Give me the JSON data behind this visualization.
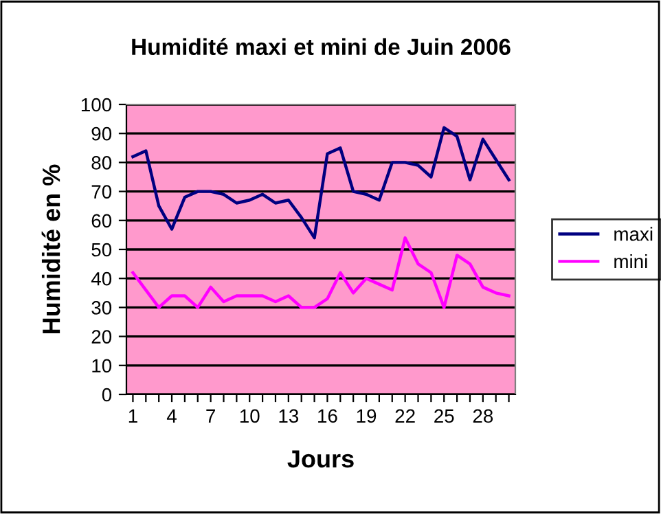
{
  "chart_data": {
    "type": "line",
    "title": "Humidité maxi et mini de Juin 2006",
    "xlabel": "Jours",
    "ylabel": "Humidité en %",
    "categories": [
      "1",
      null,
      null,
      "4",
      null,
      null,
      "7",
      null,
      null,
      "10",
      null,
      null,
      "13",
      null,
      null,
      "16",
      null,
      null,
      "19",
      null,
      null,
      "22",
      null,
      null,
      "25",
      null,
      null,
      "28",
      null,
      null
    ],
    "series": [
      {
        "name": "maxi",
        "color": "#000080",
        "values": [
          82,
          84,
          65,
          57,
          68,
          70,
          70,
          69,
          66,
          67,
          69,
          66,
          67,
          61,
          54,
          83,
          85,
          70,
          69,
          67,
          80,
          80,
          79,
          75,
          92,
          89,
          74,
          88,
          81,
          74
        ]
      },
      {
        "name": "mini",
        "color": "#ff00ff",
        "values": [
          42,
          36,
          30,
          34,
          34,
          30,
          37,
          32,
          34,
          34,
          34,
          32,
          34,
          30,
          30,
          33,
          42,
          35,
          40,
          38,
          36,
          54,
          45,
          42,
          30,
          48,
          45,
          37,
          35,
          34
        ]
      }
    ],
    "ylim": [
      0,
      100
    ],
    "yticks": [
      0,
      10,
      20,
      30,
      40,
      50,
      60,
      70,
      80,
      90,
      100
    ],
    "grid": "y",
    "legend": "right",
    "marker": "none",
    "line_style": "solid"
  }
}
